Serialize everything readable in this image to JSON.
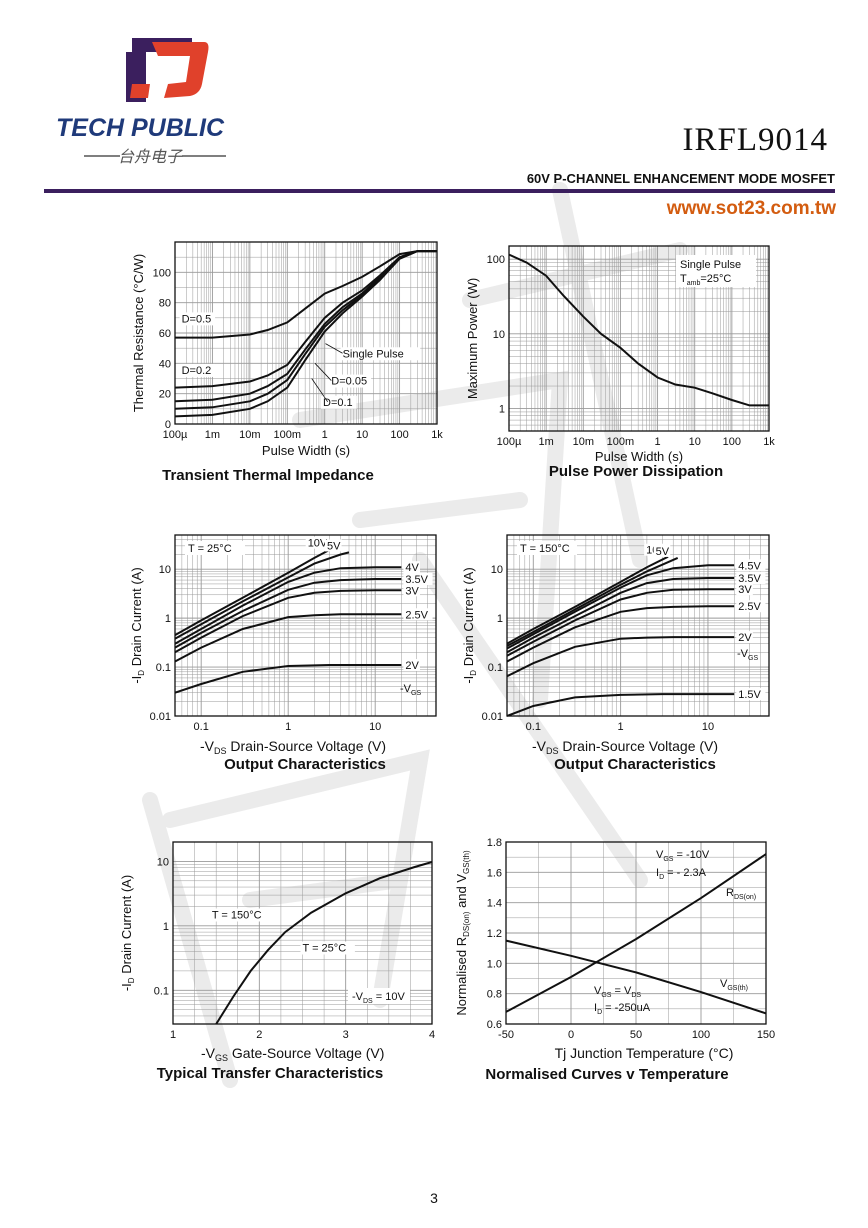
{
  "header": {
    "logo_text": "TECH PUBLIC",
    "logo_subtext": "台舟电子",
    "part_number": "IRFL9014",
    "subtitle": "60V P-CHANNEL ENHANCEMENT MODE MOSFET",
    "url": "www.sot23.com.tw"
  },
  "page_number": "3",
  "colors": {
    "rule": "#3b1f5e",
    "url": "#d35c10",
    "logo_purple": "#3b1f5e",
    "logo_red": "#e0412b"
  },
  "chart_data": [
    {
      "id": "thermal",
      "type": "line",
      "title": "Transient Thermal Impedance",
      "xlabel": "Pulse Width (s)",
      "ylabel": "Thermal Resistance (°C/W)",
      "xscale": "log",
      "xlim": [
        0.0001,
        1000
      ],
      "ylim": [
        0,
        120
      ],
      "xticks": [
        0.0001,
        0.001,
        0.01,
        0.1,
        1,
        10,
        100,
        1000
      ],
      "xticklabels": [
        "100µ",
        "1m",
        "10m",
        "100m",
        "1",
        "10",
        "100",
        "1k"
      ],
      "yticks": [
        0,
        20,
        40,
        60,
        80,
        100
      ],
      "yticklabels": [
        "0",
        "20",
        "40",
        "60",
        "80",
        "100"
      ],
      "grid": true,
      "series": [
        {
          "name": "D=0.5",
          "x": [
            0.0001,
            0.001,
            0.01,
            0.03,
            0.1,
            0.3,
            1,
            3,
            10,
            30,
            100,
            300,
            1000
          ],
          "y": [
            57,
            57,
            59,
            62,
            67,
            76,
            86,
            91,
            97,
            104,
            112,
            114,
            114
          ]
        },
        {
          "name": "D=0.2",
          "x": [
            0.0001,
            0.001,
            0.01,
            0.03,
            0.1,
            0.3,
            1,
            3,
            10,
            30,
            100,
            300,
            1000
          ],
          "y": [
            24,
            25,
            28,
            32,
            39,
            54,
            70,
            80,
            88,
            98,
            110,
            114,
            114
          ]
        },
        {
          "name": "",
          "x": [
            0.0001,
            0.001,
            0.01,
            0.03,
            0.1,
            0.3,
            1,
            3,
            10,
            30,
            100,
            300,
            1000
          ],
          "y": [
            15,
            16,
            20,
            25,
            33,
            49,
            66,
            77,
            86,
            97,
            110,
            114,
            114
          ]
        },
        {
          "name": "",
          "x": [
            0.0001,
            0.001,
            0.01,
            0.03,
            0.1,
            0.3,
            1,
            3,
            10,
            30,
            100,
            300,
            1000
          ],
          "y": [
            10,
            11,
            15,
            20,
            29,
            46,
            64,
            75,
            85,
            96,
            109,
            114,
            114
          ]
        },
        {
          "name": "",
          "x": [
            0.0001,
            0.001,
            0.01,
            0.03,
            0.1,
            0.3,
            1,
            3,
            10,
            30,
            100,
            300,
            1000
          ],
          "y": [
            5,
            6,
            10,
            15,
            24,
            42,
            61,
            73,
            84,
            95,
            109,
            114,
            114
          ]
        }
      ],
      "annotations": [
        {
          "text": "D=0.5",
          "x": 0.00015,
          "y": 67
        },
        {
          "text": "D=0.2",
          "x": 0.00015,
          "y": 33
        },
        {
          "text": "Single Pulse",
          "x": 3,
          "y": 44
        },
        {
          "text": "D=0.05",
          "x": 1.5,
          "y": 26
        },
        {
          "text": "D=0.1",
          "x": 0.9,
          "y": 12
        }
      ]
    },
    {
      "id": "power",
      "type": "line",
      "title": "Pulse Power Dissipation",
      "xlabel": "Pulse Width (s)",
      "ylabel": "Maximum Power (W)",
      "xscale": "log",
      "yscale": "log",
      "xlim": [
        0.0001,
        1000
      ],
      "ylim": [
        0.5,
        150
      ],
      "xticks": [
        0.0001,
        0.001,
        0.01,
        0.1,
        1,
        10,
        100,
        1000
      ],
      "xticklabels": [
        "100µ",
        "1m",
        "10m",
        "100m",
        "1",
        "10",
        "100",
        "1k"
      ],
      "yticks": [
        1,
        10,
        100
      ],
      "yticklabels": [
        "1",
        "10",
        "100"
      ],
      "grid": true,
      "series": [
        {
          "name": "Single Pulse T amb =25°C",
          "x": [
            0.0001,
            0.0003,
            0.001,
            0.003,
            0.01,
            0.03,
            0.1,
            0.3,
            1,
            3,
            10,
            30,
            100,
            300,
            1000
          ],
          "y": [
            115,
            90,
            60,
            32,
            17,
            10,
            6.5,
            4,
            2.6,
            2.1,
            1.9,
            1.6,
            1.3,
            1.1,
            1.1
          ]
        }
      ],
      "legend": {
        "line1": "Single Pulse",
        "line2_pre": "T",
        "line2_sub": "amb",
        "line2_post": "=25°C"
      }
    },
    {
      "id": "output25",
      "type": "line",
      "title": "Output Characteristics",
      "xlabel": "Drain-Source Voltage (V)",
      "xlabel_prefix": "-V",
      "xlabel_sub": "DS",
      "ylabel": "Drain Current (A)",
      "ylabel_prefix": "-I",
      "ylabel_sub": "D",
      "xscale": "log",
      "yscale": "log",
      "xlim": [
        0.05,
        50
      ],
      "ylim": [
        0.01,
        50
      ],
      "xticks": [
        0.1,
        1,
        10
      ],
      "xticklabels": [
        "0.1",
        "1",
        "10"
      ],
      "yticks": [
        0.01,
        0.1,
        1,
        10
      ],
      "yticklabels": [
        "0.01",
        "0.1",
        "1",
        "10"
      ],
      "grid": true,
      "note": "T = 25°C",
      "legend_label": {
        "pre": "-V",
        "sub": "GS"
      },
      "series": [
        {
          "name": "10V",
          "x": [
            0.05,
            0.1,
            0.3,
            1,
            2,
            3
          ],
          "y": [
            0.45,
            0.9,
            2.6,
            8.5,
            17,
            25
          ]
        },
        {
          "name": "5V",
          "x": [
            0.05,
            0.1,
            0.3,
            1,
            2,
            4,
            5
          ],
          "y": [
            0.38,
            0.75,
            2.2,
            6.8,
            13,
            20,
            22
          ]
        },
        {
          "name": "4V",
          "x": [
            0.05,
            0.1,
            0.3,
            1,
            2,
            4,
            10,
            20
          ],
          "y": [
            0.3,
            0.6,
            1.8,
            5.5,
            8.5,
            10.5,
            11,
            11
          ]
        },
        {
          "name": "3.5V",
          "x": [
            0.05,
            0.1,
            0.3,
            1,
            2,
            4,
            10,
            20
          ],
          "y": [
            0.25,
            0.5,
            1.4,
            3.8,
            5.3,
            6,
            6.3,
            6.3
          ]
        },
        {
          "name": "3V",
          "x": [
            0.05,
            0.1,
            0.3,
            1,
            2,
            4,
            10,
            20
          ],
          "y": [
            0.2,
            0.4,
            1.1,
            2.6,
            3.3,
            3.6,
            3.7,
            3.7
          ]
        },
        {
          "name": "2.5V",
          "x": [
            0.05,
            0.1,
            0.3,
            1,
            2,
            4,
            10,
            20
          ],
          "y": [
            0.13,
            0.25,
            0.6,
            1.05,
            1.15,
            1.2,
            1.2,
            1.2
          ]
        },
        {
          "name": "2V",
          "x": [
            0.05,
            0.1,
            0.3,
            1,
            3,
            10,
            20
          ],
          "y": [
            0.03,
            0.045,
            0.08,
            0.105,
            0.11,
            0.11,
            0.11
          ]
        }
      ]
    },
    {
      "id": "output150",
      "type": "line",
      "title": "Output Characteristics",
      "xlabel": "Drain-Source Voltage (V)",
      "xlabel_prefix": "-V",
      "xlabel_sub": "DS",
      "ylabel": "Drain Current (A)",
      "ylabel_prefix": "-I",
      "ylabel_sub": "D",
      "xscale": "log",
      "yscale": "log",
      "xlim": [
        0.05,
        50
      ],
      "ylim": [
        0.01,
        50
      ],
      "xticks": [
        0.1,
        1,
        10
      ],
      "xticklabels": [
        "0.1",
        "1",
        "10"
      ],
      "yticks": [
        0.01,
        0.1,
        1,
        10
      ],
      "yticklabels": [
        "0.01",
        "0.1",
        "1",
        "10"
      ],
      "grid": true,
      "note": "T = 150°C",
      "legend_label": {
        "pre": "-V",
        "sub": "GS"
      },
      "series": [
        {
          "name": "10V",
          "x": [
            0.05,
            0.1,
            0.3,
            1,
            2,
            3.5
          ],
          "y": [
            0.3,
            0.6,
            1.7,
            5.5,
            11,
            18
          ]
        },
        {
          "name": "5V",
          "x": [
            0.05,
            0.1,
            0.3,
            1,
            2,
            4.5
          ],
          "y": [
            0.27,
            0.52,
            1.5,
            4.8,
            9,
            17
          ]
        },
        {
          "name": "4.5V",
          "x": [
            0.05,
            0.1,
            0.3,
            1,
            2,
            4,
            10,
            20
          ],
          "y": [
            0.24,
            0.47,
            1.35,
            4.2,
            7.5,
            10.5,
            12,
            12
          ]
        },
        {
          "name": "3.5V",
          "x": [
            0.05,
            0.1,
            0.3,
            1,
            2,
            4,
            10,
            20
          ],
          "y": [
            0.2,
            0.4,
            1.1,
            3.3,
            5.2,
            6.3,
            6.6,
            6.6
          ]
        },
        {
          "name": "3V",
          "x": [
            0.05,
            0.1,
            0.3,
            1,
            2,
            4,
            10,
            20
          ],
          "y": [
            0.17,
            0.33,
            0.9,
            2.4,
            3.3,
            3.8,
            3.9,
            3.9
          ]
        },
        {
          "name": "2.5V",
          "x": [
            0.05,
            0.1,
            0.3,
            1,
            2,
            4,
            10,
            20
          ],
          "y": [
            0.13,
            0.25,
            0.65,
            1.35,
            1.6,
            1.7,
            1.75,
            1.75
          ]
        },
        {
          "name": "2V",
          "x": [
            0.05,
            0.1,
            0.3,
            1,
            2,
            4,
            10,
            20
          ],
          "y": [
            0.065,
            0.12,
            0.26,
            0.38,
            0.4,
            0.41,
            0.41,
            0.41
          ]
        },
        {
          "name": "1.5V",
          "x": [
            0.05,
            0.1,
            0.3,
            1,
            3,
            10,
            20
          ],
          "y": [
            0.01,
            0.016,
            0.024,
            0.027,
            0.028,
            0.028,
            0.028
          ]
        }
      ]
    },
    {
      "id": "transfer",
      "type": "line",
      "title": "Typical Transfer Characteristics",
      "xlabel": "Gate-Source Voltage (V)",
      "xlabel_prefix": "-V",
      "xlabel_sub": "GS",
      "ylabel": "Drain Current (A)",
      "ylabel_prefix": "-I",
      "ylabel_sub": "D",
      "yscale": "log",
      "xlim": [
        1,
        4
      ],
      "ylim": [
        0.03,
        20
      ],
      "xticks": [
        1,
        2,
        3,
        4
      ],
      "xticklabels": [
        "1",
        "2",
        "3",
        "4"
      ],
      "yticks": [
        0.1,
        1,
        10
      ],
      "yticklabels": [
        "0.1",
        "1",
        "10"
      ],
      "grid": true,
      "vds_label": {
        "pre": "-V",
        "sub": "DS",
        "post": " = 10V"
      },
      "series": [
        {
          "name": "T = 150°C",
          "x": [
            1.5,
            1.7,
            1.9,
            2.1,
            2.3,
            2.6,
            3.0,
            3.4,
            3.8,
            4.0
          ],
          "y": [
            0.03,
            0.08,
            0.2,
            0.42,
            0.8,
            1.6,
            3.2,
            5.5,
            8.2,
            9.8
          ]
        }
      ],
      "annotations": [
        {
          "text": "T = 150°C",
          "x": 1.45,
          "y": 1.3
        },
        {
          "text": "T = 25°C",
          "x": 2.5,
          "y": 0.4
        }
      ]
    },
    {
      "id": "normalised",
      "type": "line",
      "title": "Normalised Curves v Temperature",
      "xlabel": "Tj  Junction Temperature (°C)",
      "ylabel": "Normalised R DS(on) and V GS(th)",
      "xlim": [
        -50,
        150
      ],
      "ylim": [
        0.6,
        1.8
      ],
      "xticks": [
        -50,
        0,
        50,
        100,
        150
      ],
      "xticklabels": [
        "-50",
        "0",
        "50",
        "100",
        "150"
      ],
      "yticks": [
        0.6,
        0.8,
        1.0,
        1.2,
        1.4,
        1.6,
        1.8
      ],
      "yticklabels": [
        "0.6",
        "0.8",
        "1.0",
        "1.2",
        "1.4",
        "1.6",
        "1.8"
      ],
      "grid": true,
      "series": [
        {
          "name": "R DS(on)",
          "x": [
            -50,
            0,
            50,
            100,
            150
          ],
          "y": [
            0.68,
            0.91,
            1.16,
            1.43,
            1.72
          ]
        },
        {
          "name": "V GS(th)",
          "x": [
            -50,
            0,
            50,
            100,
            150
          ],
          "y": [
            1.15,
            1.05,
            0.94,
            0.81,
            0.67
          ]
        }
      ],
      "labels": {
        "ron_cond1": {
          "pre": "V",
          "sub": "GS",
          "post": " = -10V"
        },
        "ron_cond2": {
          "pre": "I",
          "sub": "D",
          "post": " = - 2.3A"
        },
        "ron_name": {
          "pre": "R",
          "sub": "DS(on)"
        },
        "vth_cond1": {
          "pre": "V",
          "sub": "GS",
          "mid": " = V",
          "sub2": "DS"
        },
        "vth_cond2": {
          "pre": "I",
          "sub": "D",
          "post": " = -250uA"
        },
        "vth_name": {
          "pre": "V",
          "sub": "GS(th)"
        },
        "ylabel_parts": {
          "a": "Normalised R",
          "b": "DS(on)",
          "c": " and V",
          "d": "GS(th)"
        }
      }
    }
  ]
}
